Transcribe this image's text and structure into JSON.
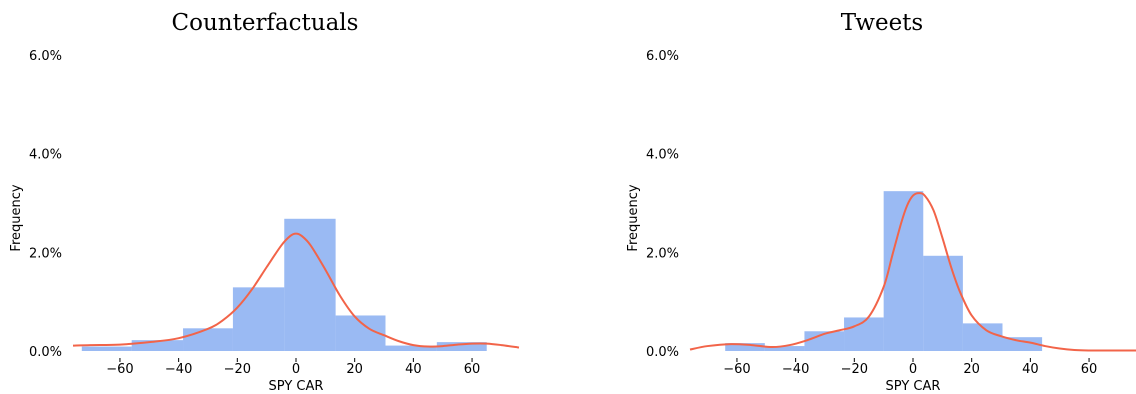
{
  "chart_data": [
    {
      "type": "bar",
      "title": "Counterfactuals",
      "xlabel": "SPY CAR",
      "ylabel": "Frequency",
      "xlim": [
        -76,
        76
      ],
      "ylim": [
        0,
        6
      ],
      "xticks": [
        -60,
        -40,
        -20,
        0,
        20,
        40,
        60
      ],
      "xtick_labels": [
        "−60",
        "−40",
        "−20",
        "0",
        "20",
        "40",
        "60"
      ],
      "yticks": [
        0,
        2,
        4,
        6
      ],
      "ytick_labels": [
        "0.0%",
        "2.0%",
        "4.0%",
        "6.0%"
      ],
      "grid": false,
      "legend": "none",
      "series": [
        {
          "kind": "histogram",
          "color": "#6495ED",
          "bins": [
            {
              "x0": -73,
              "x1": -56,
              "value": 0.09
            },
            {
              "x0": -56,
              "x1": -38.5,
              "value": 0.22
            },
            {
              "x0": -38.5,
              "x1": -21.5,
              "value": 0.46
            },
            {
              "x0": -21.5,
              "x1": -4,
              "value": 1.29
            },
            {
              "x0": -4,
              "x1": 13.5,
              "value": 2.68
            },
            {
              "x0": 13.5,
              "x1": 30.5,
              "value": 0.72
            },
            {
              "x0": 30.5,
              "x1": 48,
              "value": 0.11
            },
            {
              "x0": 48,
              "x1": 65,
              "value": 0.18
            }
          ]
        },
        {
          "kind": "kde",
          "color": "#F26449",
          "x": [
            -76,
            -70,
            -60,
            -50,
            -40,
            -30,
            -25,
            -20,
            -15,
            -10,
            -5,
            -2,
            0,
            2,
            5,
            10,
            15,
            20,
            25,
            30,
            35,
            40,
            45,
            50,
            55,
            60,
            65,
            70,
            76
          ],
          "y": [
            0.11,
            0.12,
            0.13,
            0.18,
            0.26,
            0.45,
            0.62,
            0.88,
            1.25,
            1.7,
            2.14,
            2.33,
            2.38,
            2.33,
            2.14,
            1.65,
            1.12,
            0.7,
            0.45,
            0.32,
            0.2,
            0.12,
            0.09,
            0.1,
            0.13,
            0.15,
            0.15,
            0.12,
            0.07
          ]
        }
      ]
    },
    {
      "type": "bar",
      "title": "Tweets",
      "xlabel": "SPY CAR",
      "ylabel": "Frequency",
      "xlim": [
        -76,
        76
      ],
      "ylim": [
        0,
        6
      ],
      "xticks": [
        -60,
        -40,
        -20,
        0,
        20,
        40,
        60
      ],
      "xtick_labels": [
        "−60",
        "−40",
        "−20",
        "0",
        "20",
        "40",
        "60"
      ],
      "yticks": [
        0,
        2,
        4,
        6
      ],
      "ytick_labels": [
        "0.0%",
        "2.0%",
        "4.0%",
        "6.0%"
      ],
      "grid": false,
      "legend": "none",
      "series": [
        {
          "kind": "histogram",
          "color": "#6495ED",
          "bins": [
            {
              "x0": -64,
              "x1": -50.5,
              "value": 0.16
            },
            {
              "x0": -50.5,
              "x1": -37,
              "value": 0.1
            },
            {
              "x0": -37,
              "x1": -23.5,
              "value": 0.4
            },
            {
              "x0": -23.5,
              "x1": -10,
              "value": 0.68
            },
            {
              "x0": -10,
              "x1": 3.5,
              "value": 3.24
            },
            {
              "x0": 3.5,
              "x1": 17,
              "value": 1.93
            },
            {
              "x0": 17,
              "x1": 30.5,
              "value": 0.56
            },
            {
              "x0": 30.5,
              "x1": 44,
              "value": 0.28
            }
          ]
        },
        {
          "kind": "kde",
          "color": "#F26449",
          "x": [
            -76,
            -70,
            -62,
            -55,
            -48,
            -42,
            -36,
            -30,
            -25,
            -20,
            -15,
            -10,
            -7,
            -4,
            -2,
            0,
            2,
            4,
            7,
            10,
            13,
            16,
            20,
            25,
            30,
            35,
            40,
            45,
            50,
            55,
            60,
            65,
            70,
            76
          ],
          "y": [
            0.03,
            0.1,
            0.14,
            0.12,
            0.08,
            0.12,
            0.22,
            0.35,
            0.42,
            0.5,
            0.7,
            1.3,
            1.95,
            2.6,
            2.95,
            3.15,
            3.2,
            3.15,
            2.85,
            2.3,
            1.7,
            1.2,
            0.72,
            0.42,
            0.3,
            0.22,
            0.17,
            0.1,
            0.05,
            0.02,
            0.01,
            0.01,
            0.01,
            0.01
          ]
        }
      ]
    }
  ]
}
